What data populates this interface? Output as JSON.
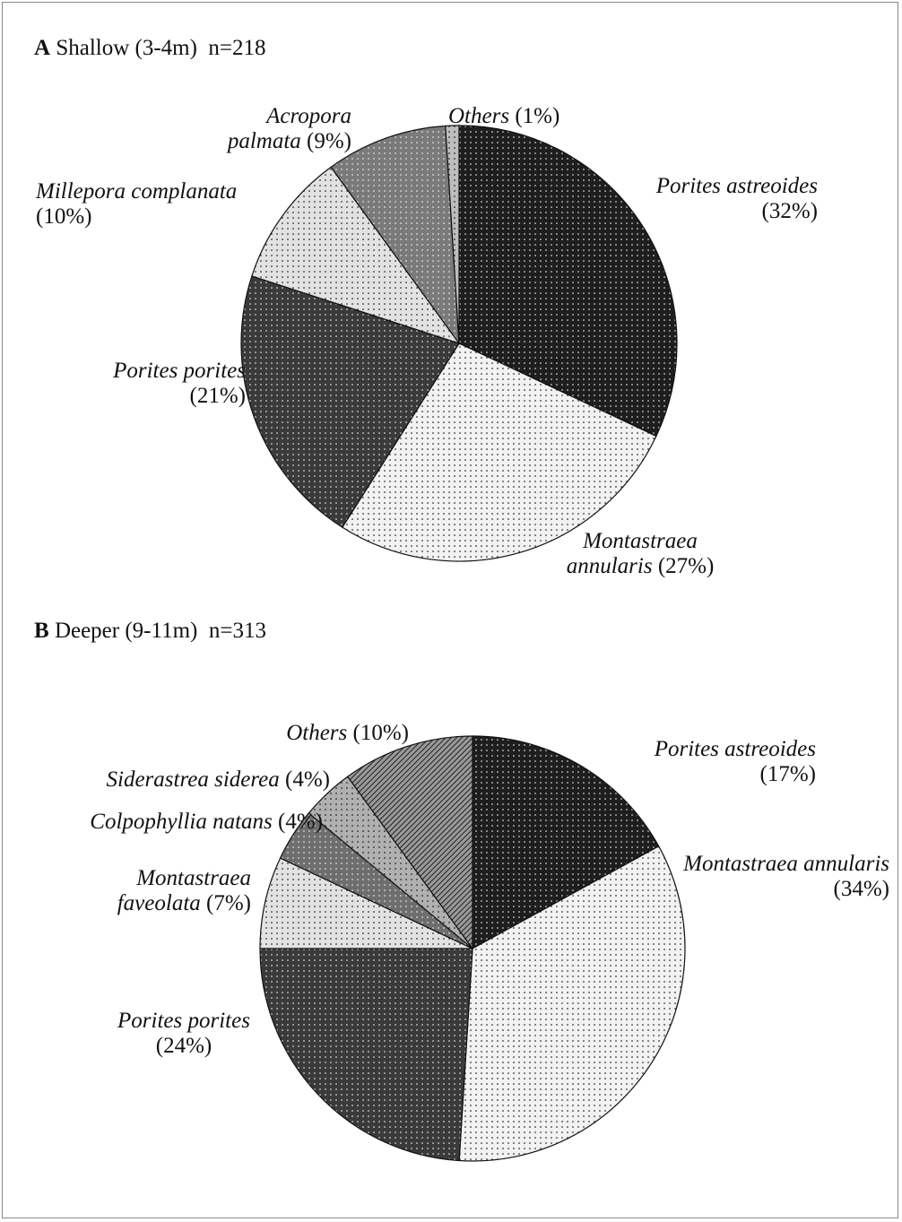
{
  "chart_data": [
    {
      "type": "pie",
      "panel": "A",
      "title": "Shallow (3-4m)  n=218",
      "categories": [
        "Porites astreoides",
        "Montastraea annularis",
        "Porites porites",
        "Millepora complanata",
        "Acropora palmata",
        "Others"
      ],
      "values": [
        32,
        27,
        21,
        10,
        9,
        1
      ],
      "value_labels": [
        "(32%)",
        "(27%)",
        "(21%)",
        "(10%)",
        "(9%)",
        "(1%)"
      ],
      "colors": [
        "#1e1e1e",
        "#f2f2f2",
        "#3a3a3a",
        "#e2e2e2",
        "#7a7a7a",
        "#bdbdbd"
      ]
    },
    {
      "type": "pie",
      "panel": "B",
      "title": "Deeper (9-11m)  n=313",
      "categories": [
        "Porites astreoides",
        "Montastraea annularis",
        "Porites porites",
        "Montastraea faveolata",
        "Colpophyllia natans",
        "Siderastrea siderea",
        "Others"
      ],
      "values": [
        17,
        34,
        24,
        7,
        4,
        4,
        10
      ],
      "value_labels": [
        "(17%)",
        "(34%)",
        "(24%)",
        "(7%)",
        "(4%)",
        "(4%)",
        "(10%)"
      ],
      "colors": [
        "#1e1e1e",
        "#f2f2f2",
        "#3a3a3a",
        "#e2e2e2",
        "#6e6e6e",
        "#b0b0b0",
        "#9a9a9a"
      ]
    }
  ]
}
